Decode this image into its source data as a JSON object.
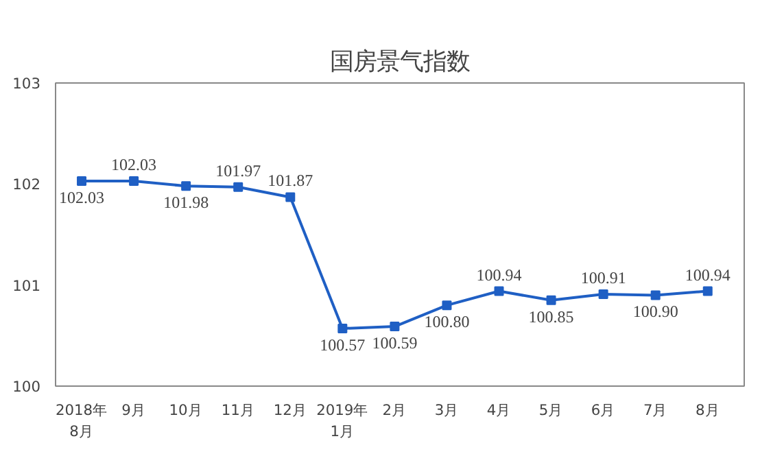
{
  "chart_data": {
    "type": "line",
    "title": "国房景气指数",
    "categories": [
      "2018年\n8月",
      "9月",
      "10月",
      "11月",
      "12月",
      "2019年\n1月",
      "2月",
      "3月",
      "4月",
      "5月",
      "6月",
      "7月",
      "8月"
    ],
    "series": [
      {
        "color": "#1f5fc4",
        "values": [
          102.03,
          102.03,
          101.98,
          101.97,
          101.87,
          100.57,
          100.59,
          100.8,
          100.94,
          100.85,
          100.91,
          100.9,
          100.94
        ],
        "value_labels": [
          "102.03",
          "102.03",
          "101.98",
          "101.97",
          "101.87",
          "100.57",
          "100.59",
          "100.80",
          "100.94",
          "100.85",
          "100.91",
          "100.90",
          "100.94"
        ]
      }
    ],
    "ylim": [
      100,
      103
    ],
    "yticks": [
      100,
      101,
      102,
      103
    ],
    "grid": false,
    "marker": "square",
    "line_style": "solid"
  }
}
